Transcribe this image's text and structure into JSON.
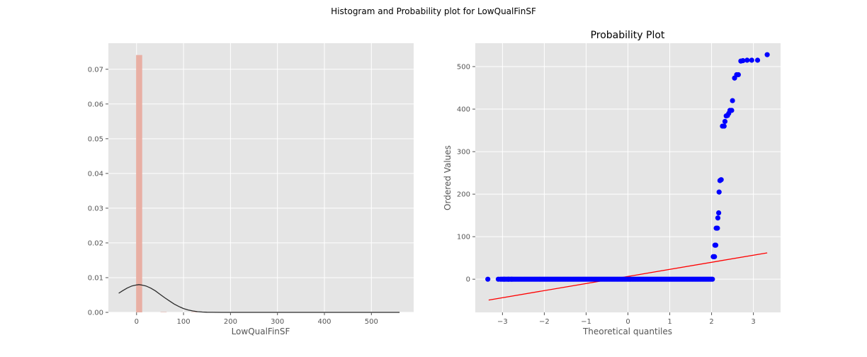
{
  "figure": {
    "suptitle": "Histogram and Probability plot for LowQualFinSF",
    "background": "#ffffff",
    "panel_background": "#e5e5e5",
    "grid_color": "#ffffff"
  },
  "chart_data": [
    {
      "type": "bar",
      "title": "",
      "xlabel": "LowQualFinSF",
      "ylabel": "",
      "xlim": [
        -60,
        590
      ],
      "ylim": [
        0,
        0.0775
      ],
      "grid": true,
      "xticks": [
        0,
        100,
        200,
        300,
        400,
        500
      ],
      "xtick_labels": [
        "0",
        "100",
        "200",
        "300",
        "400",
        "500"
      ],
      "yticks": [
        0.0,
        0.01,
        0.02,
        0.03,
        0.04,
        0.05,
        0.06,
        0.07
      ],
      "ytick_labels": [
        "0.00",
        "0.01",
        "0.02",
        "0.03",
        "0.04",
        "0.05",
        "0.06",
        "0.07"
      ],
      "bar_color": "#e8a99c",
      "bar_opacity": 0.9,
      "bins": [
        {
          "x0": -1,
          "x1": 12,
          "value": 0.0741
        },
        {
          "x0": 51,
          "x1": 64,
          "value": 0.0001
        },
        {
          "x0": 116,
          "x1": 129,
          "value": 0.0001
        },
        {
          "x0": 142,
          "x1": 155,
          "value": 0.0001
        },
        {
          "x0": 194,
          "x1": 207,
          "value": 0.0001
        },
        {
          "x0": 233,
          "x1": 246,
          "value": 0.0001
        },
        {
          "x0": 350,
          "x1": 363,
          "value": 0.0001
        },
        {
          "x0": 376,
          "x1": 389,
          "value": 0.0001
        },
        {
          "x0": 389,
          "x1": 402,
          "value": 0.0001
        },
        {
          "x0": 415,
          "x1": 428,
          "value": 0.0001
        },
        {
          "x0": 467,
          "x1": 480,
          "value": 0.0001
        },
        {
          "x0": 506,
          "x1": 519,
          "value": 0.0001
        },
        {
          "x0": 519,
          "x1": 532,
          "value": 0.0001
        }
      ],
      "kde_color": "#2b2b2b",
      "kde": {
        "x": [
          -38,
          -30,
          -20,
          -10,
          0,
          5,
          10,
          20,
          30,
          40,
          50,
          60,
          70,
          80,
          90,
          100,
          110,
          120,
          130,
          140,
          150,
          160,
          180,
          200,
          250,
          300,
          400,
          500,
          560
        ],
        "y": [
          0.0055,
          0.0062,
          0.007,
          0.0076,
          0.0079,
          0.008,
          0.0079,
          0.0076,
          0.007,
          0.0062,
          0.0052,
          0.0042,
          0.0033,
          0.0024,
          0.0017,
          0.0011,
          0.0007,
          0.0004,
          0.0002,
          0.0001,
          5e-05,
          2e-05,
          1e-05,
          0.0,
          0.0,
          0.0,
          0.0,
          0.0,
          0.0
        ]
      }
    },
    {
      "type": "scatter",
      "title": "Probability Plot",
      "xlabel": "Theoretical quantiles",
      "ylabel": "Ordered Values",
      "xlim": [
        -3.65,
        3.65
      ],
      "ylim": [
        -78,
        555
      ],
      "grid": true,
      "xticks": [
        -3,
        -2,
        -1,
        0,
        1,
        2,
        3
      ],
      "xtick_labels": [
        "−3",
        "−2",
        "−1",
        "0",
        "1",
        "2",
        "3"
      ],
      "yticks": [
        0,
        100,
        200,
        300,
        400,
        500
      ],
      "ytick_labels": [
        "0",
        "100",
        "200",
        "300",
        "400",
        "500"
      ],
      "point_color": "#0000ff",
      "zero_run": {
        "x_start": -3.05,
        "x_end": 2.03,
        "step": 0.03,
        "y": 0
      },
      "points": [
        {
          "x": -3.35,
          "y": 0
        },
        {
          "x": -3.1,
          "y": 0
        },
        {
          "x": -2.96,
          "y": 0
        },
        {
          "x": -2.86,
          "y": 0
        },
        {
          "x": -2.78,
          "y": 0
        },
        {
          "x": 2.04,
          "y": 53
        },
        {
          "x": 2.07,
          "y": 53
        },
        {
          "x": 2.08,
          "y": 80
        },
        {
          "x": 2.1,
          "y": 80
        },
        {
          "x": 2.11,
          "y": 120
        },
        {
          "x": 2.14,
          "y": 120
        },
        {
          "x": 2.15,
          "y": 144
        },
        {
          "x": 2.17,
          "y": 156
        },
        {
          "x": 2.18,
          "y": 205
        },
        {
          "x": 2.2,
          "y": 232
        },
        {
          "x": 2.23,
          "y": 234
        },
        {
          "x": 2.26,
          "y": 360
        },
        {
          "x": 2.3,
          "y": 360
        },
        {
          "x": 2.32,
          "y": 371
        },
        {
          "x": 2.35,
          "y": 384
        },
        {
          "x": 2.38,
          "y": 385
        },
        {
          "x": 2.41,
          "y": 390
        },
        {
          "x": 2.44,
          "y": 397
        },
        {
          "x": 2.48,
          "y": 397
        },
        {
          "x": 2.5,
          "y": 420
        },
        {
          "x": 2.55,
          "y": 473
        },
        {
          "x": 2.6,
          "y": 481
        },
        {
          "x": 2.64,
          "y": 481
        },
        {
          "x": 2.7,
          "y": 513
        },
        {
          "x": 2.75,
          "y": 514
        },
        {
          "x": 2.85,
          "y": 515
        },
        {
          "x": 2.96,
          "y": 515
        },
        {
          "x": 3.1,
          "y": 515
        },
        {
          "x": 3.33,
          "y": 528
        }
      ],
      "fit_line": {
        "color": "#ff0000",
        "x": [
          -3.33,
          3.33
        ],
        "y": [
          -49,
          62
        ]
      }
    }
  ]
}
